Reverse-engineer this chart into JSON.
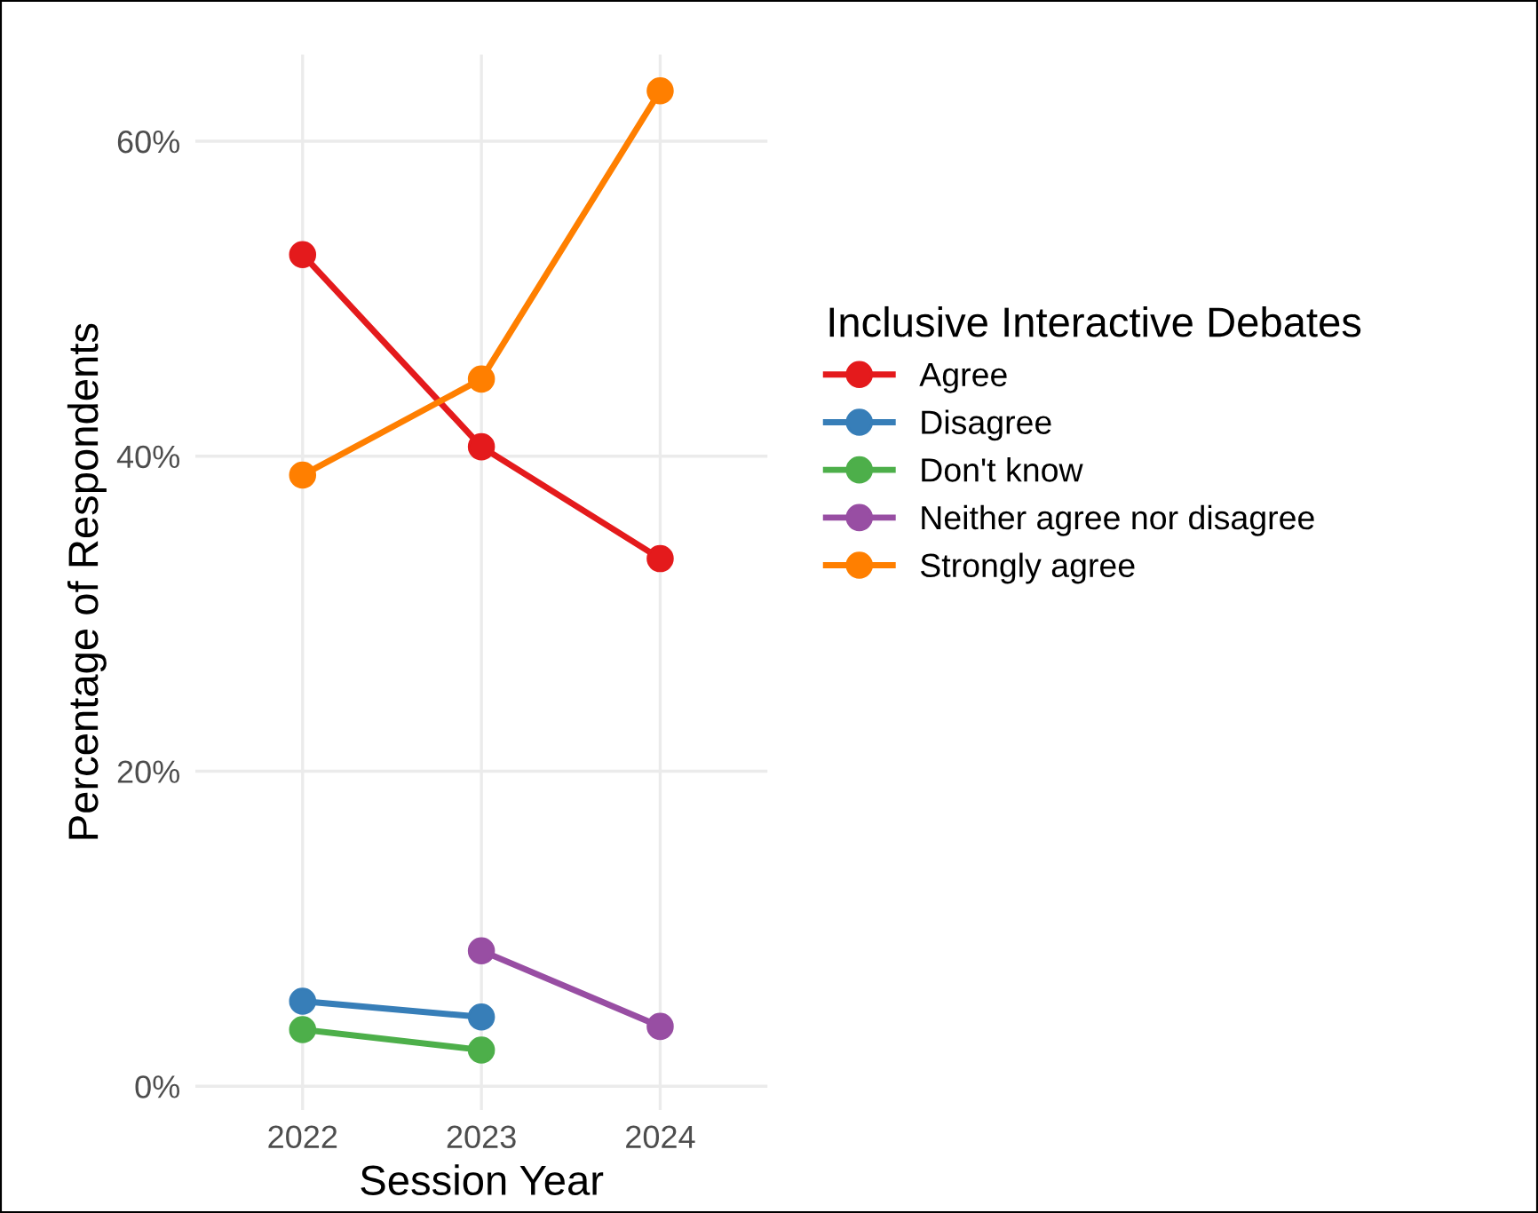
{
  "chart_data": {
    "type": "line",
    "xlabel": "Session Year",
    "ylabel": "Percentage of Respondents",
    "legend_title": "Inclusive Interactive Debates",
    "categories": [
      "2022",
      "2023",
      "2024"
    ],
    "series": [
      {
        "name": "Agree",
        "color": "#e41a1c",
        "values": [
          52.8,
          40.6,
          33.5
        ]
      },
      {
        "name": "Disagree",
        "color": "#377eb8",
        "values": [
          5.4,
          4.4,
          null
        ]
      },
      {
        "name": "Don't know",
        "color": "#4daf4a",
        "values": [
          3.6,
          2.3,
          null
        ]
      },
      {
        "name": "Neither agree nor disagree",
        "color": "#984ea3",
        "values": [
          null,
          8.6,
          3.8
        ]
      },
      {
        "name": "Strongly agree",
        "color": "#ff7f00",
        "values": [
          38.8,
          44.9,
          63.2
        ]
      }
    ],
    "ylim": [
      -1.5,
      65.5
    ],
    "yticks": [
      {
        "value": 0,
        "label": "0%"
      },
      {
        "value": 20,
        "label": "20%"
      },
      {
        "value": 40,
        "label": "40%"
      },
      {
        "value": 60,
        "label": "60%"
      }
    ],
    "grid": true,
    "legend": "right",
    "marker": "circle",
    "line_style": "solid"
  }
}
